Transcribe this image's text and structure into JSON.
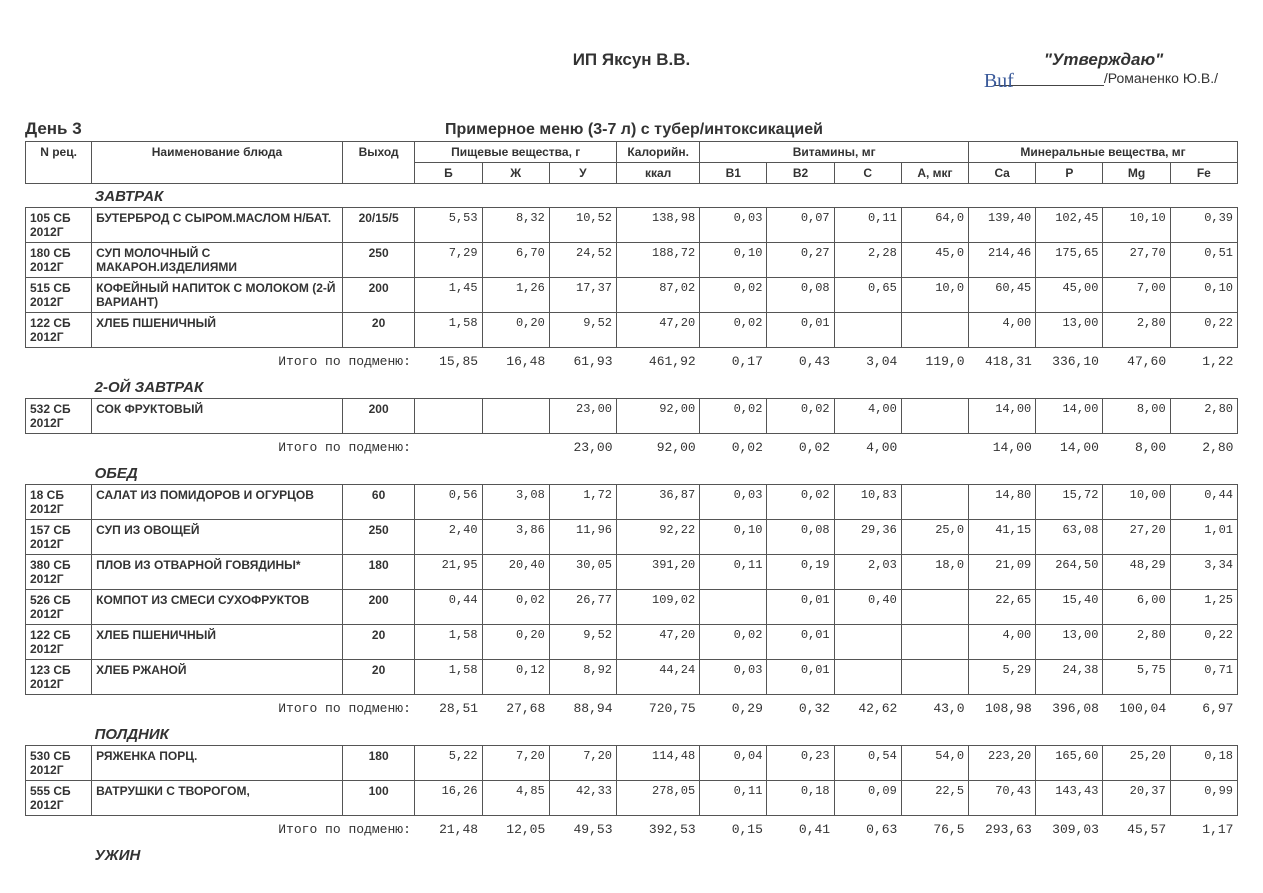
{
  "header": {
    "org": "ИП Яксун В.В.",
    "approval_label": "\"Утверждаю\"",
    "approver": "/Романенко Ю.В./",
    "day": "День 3",
    "menu_title": "Примерное меню (3-7 л) с тубер/интоксикацией"
  },
  "columns": {
    "rec": "N рец.",
    "name": "Наименование блюда",
    "yield": "Выход",
    "nutrients_group": "Пищевые вещества, г",
    "b": "Б",
    "zh": "Ж",
    "u": "У",
    "cal_group": "Калорийн.",
    "kcal": "ккал",
    "vitamins_group": "Витамины, мг",
    "b1": "B1",
    "b2": "B2",
    "c": "C",
    "a": "A, мкг",
    "minerals_group": "Минеральные вещества, мг",
    "ca": "Ca",
    "p": "P",
    "mg": "Mg",
    "fe": "Fe"
  },
  "subtotal_label": "Итого по подменю:",
  "sections": [
    {
      "title": "ЗАВТРАК",
      "rows": [
        {
          "rec": "105 СБ 2012Г",
          "name": "БУТЕРБРОД С СЫРОМ.МАСЛОМ Н/БАТ.",
          "yield": "20/15/5",
          "v": [
            "5,53",
            "8,32",
            "10,52",
            "138,98",
            "0,03",
            "0,07",
            "0,11",
            "64,0",
            "139,40",
            "102,45",
            "10,10",
            "0,39"
          ]
        },
        {
          "rec": "180 СБ 2012Г",
          "name": "СУП МОЛОЧНЫЙ С МАКАРОН.ИЗДЕЛИЯМИ",
          "yield": "250",
          "v": [
            "7,29",
            "6,70",
            "24,52",
            "188,72",
            "0,10",
            "0,27",
            "2,28",
            "45,0",
            "214,46",
            "175,65",
            "27,70",
            "0,51"
          ]
        },
        {
          "rec": "515 СБ 2012Г",
          "name": "КОФЕЙНЫЙ НАПИТОК С МОЛОКОМ (2-Й ВАРИАНТ)",
          "yield": "200",
          "v": [
            "1,45",
            "1,26",
            "17,37",
            "87,02",
            "0,02",
            "0,08",
            "0,65",
            "10,0",
            "60,45",
            "45,00",
            "7,00",
            "0,10"
          ]
        },
        {
          "rec": "122 СБ 2012Г",
          "name": "ХЛЕБ ПШЕНИЧНЫЙ",
          "yield": "20",
          "v": [
            "1,58",
            "0,20",
            "9,52",
            "47,20",
            "0,02",
            "0,01",
            "",
            "",
            "4,00",
            "13,00",
            "2,80",
            "0,22"
          ]
        }
      ],
      "subtotal": [
        "15,85",
        "16,48",
        "61,93",
        "461,92",
        "0,17",
        "0,43",
        "3,04",
        "119,0",
        "418,31",
        "336,10",
        "47,60",
        "1,22"
      ]
    },
    {
      "title": "2-ОЙ ЗАВТРАК",
      "rows": [
        {
          "rec": "532 СБ 2012Г",
          "name": "СОК ФРУКТОВЫЙ",
          "yield": "200",
          "v": [
            "",
            "",
            "23,00",
            "92,00",
            "0,02",
            "0,02",
            "4,00",
            "",
            "14,00",
            "14,00",
            "8,00",
            "2,80"
          ]
        }
      ],
      "subtotal": [
        "",
        "",
        "23,00",
        "92,00",
        "0,02",
        "0,02",
        "4,00",
        "",
        "14,00",
        "14,00",
        "8,00",
        "2,80"
      ]
    },
    {
      "title": "ОБЕД",
      "rows": [
        {
          "rec": "18 СБ 2012Г",
          "name": "САЛАТ ИЗ ПОМИДОРОВ И ОГУРЦОВ",
          "yield": "60",
          "v": [
            "0,56",
            "3,08",
            "1,72",
            "36,87",
            "0,03",
            "0,02",
            "10,83",
            "",
            "14,80",
            "15,72",
            "10,00",
            "0,44"
          ]
        },
        {
          "rec": "157 СБ 2012Г",
          "name": "СУП ИЗ ОВОЩЕЙ",
          "yield": "250",
          "v": [
            "2,40",
            "3,86",
            "11,96",
            "92,22",
            "0,10",
            "0,08",
            "29,36",
            "25,0",
            "41,15",
            "63,08",
            "27,20",
            "1,01"
          ]
        },
        {
          "rec": "380 СБ 2012Г",
          "name": "ПЛОВ ИЗ ОТВАРНОЙ ГОВЯДИНЫ*",
          "yield": "180",
          "v": [
            "21,95",
            "20,40",
            "30,05",
            "391,20",
            "0,11",
            "0,19",
            "2,03",
            "18,0",
            "21,09",
            "264,50",
            "48,29",
            "3,34"
          ]
        },
        {
          "rec": "526 СБ 2012Г",
          "name": "КОМПОТ ИЗ СМЕСИ СУХОФРУКТОВ",
          "yield": "200",
          "v": [
            "0,44",
            "0,02",
            "26,77",
            "109,02",
            "",
            "0,01",
            "0,40",
            "",
            "22,65",
            "15,40",
            "6,00",
            "1,25"
          ]
        },
        {
          "rec": "122 СБ 2012Г",
          "name": "ХЛЕБ ПШЕНИЧНЫЙ",
          "yield": "20",
          "v": [
            "1,58",
            "0,20",
            "9,52",
            "47,20",
            "0,02",
            "0,01",
            "",
            "",
            "4,00",
            "13,00",
            "2,80",
            "0,22"
          ]
        },
        {
          "rec": "123 СБ 2012Г",
          "name": "ХЛЕБ РЖАНОЙ",
          "yield": "20",
          "v": [
            "1,58",
            "0,12",
            "8,92",
            "44,24",
            "0,03",
            "0,01",
            "",
            "",
            "5,29",
            "24,38",
            "5,75",
            "0,71"
          ]
        }
      ],
      "subtotal": [
        "28,51",
        "27,68",
        "88,94",
        "720,75",
        "0,29",
        "0,32",
        "42,62",
        "43,0",
        "108,98",
        "396,08",
        "100,04",
        "6,97"
      ]
    },
    {
      "title": "ПОЛДНИК",
      "rows": [
        {
          "rec": "530 СБ 2012Г",
          "name": "РЯЖЕНКА ПОРЦ.",
          "yield": "180",
          "v": [
            "5,22",
            "7,20",
            "7,20",
            "114,48",
            "0,04",
            "0,23",
            "0,54",
            "54,0",
            "223,20",
            "165,60",
            "25,20",
            "0,18"
          ]
        },
        {
          "rec": "555 СБ 2012Г",
          "name": "ВАТРУШКИ С ТВОРОГОМ,",
          "yield": "100",
          "v": [
            "16,26",
            "4,85",
            "42,33",
            "278,05",
            "0,11",
            "0,18",
            "0,09",
            "22,5",
            "70,43",
            "143,43",
            "20,37",
            "0,99"
          ]
        }
      ],
      "subtotal": [
        "21,48",
        "12,05",
        "49,53",
        "392,53",
        "0,15",
        "0,41",
        "0,63",
        "76,5",
        "293,63",
        "309,03",
        "45,57",
        "1,17"
      ]
    },
    {
      "title": "УЖИН",
      "rows": [],
      "subtotal": null
    }
  ]
}
